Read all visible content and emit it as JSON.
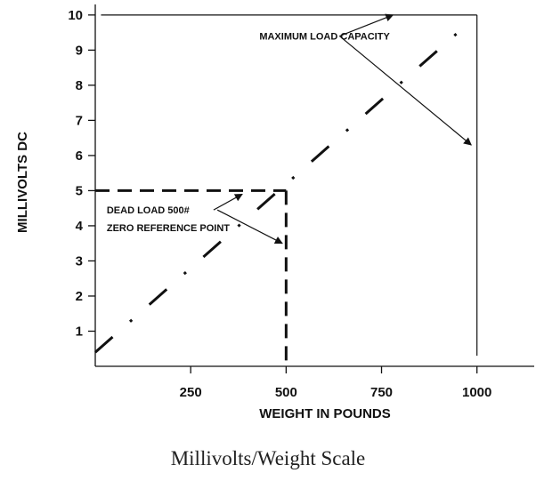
{
  "chart_data": {
    "type": "line",
    "xlabel": "WEIGHT IN POUNDS",
    "ylabel": "MILLIVOLTS DC",
    "xlim": [
      0,
      1150
    ],
    "ylim": [
      0,
      10.3
    ],
    "x_ticks": [
      250,
      500,
      750,
      1000
    ],
    "y_ticks": [
      1,
      2,
      3,
      4,
      5,
      6,
      7,
      8,
      9,
      10
    ],
    "series": [
      {
        "style": "dash-dot",
        "x": [
          0,
          950
        ],
        "y": [
          0.4,
          9.5
        ]
      }
    ],
    "reference_lines": [
      {
        "style": "dashed",
        "x": [
          0,
          500
        ],
        "y": [
          5,
          5
        ]
      },
      {
        "style": "dashed",
        "x": [
          500,
          500
        ],
        "y": [
          5,
          0
        ]
      },
      {
        "style": "solid",
        "x": [
          1000,
          1000
        ],
        "y": [
          0.3,
          10
        ]
      },
      {
        "style": "solid",
        "x": [
          15,
          1000
        ],
        "y": [
          10,
          10
        ]
      }
    ],
    "annotations": [
      {
        "text": "MAXIMUM LOAD CAPACITY",
        "x": 430,
        "y": 9.4,
        "arrows": [
          {
            "from": [
              640,
              9.4
            ],
            "to": [
              780,
              10
            ]
          },
          {
            "from": [
              640,
              9.4
            ],
            "to": [
              985,
              6.3
            ]
          }
        ]
      },
      {
        "text": "DEAD LOAD 500#",
        "x": 30,
        "y": 4.45,
        "arrows": [
          {
            "from": [
              310,
              4.45
            ],
            "to": [
              385,
              4.9
            ]
          }
        ]
      },
      {
        "text": "ZERO REFERENCE POINT",
        "x": 30,
        "y": 3.95,
        "arrows": [
          {
            "from": [
              320,
              4.45
            ],
            "to": [
              490,
              3.5
            ]
          }
        ]
      }
    ],
    "grid": false
  },
  "caption": "Millivolts/Weight Scale"
}
